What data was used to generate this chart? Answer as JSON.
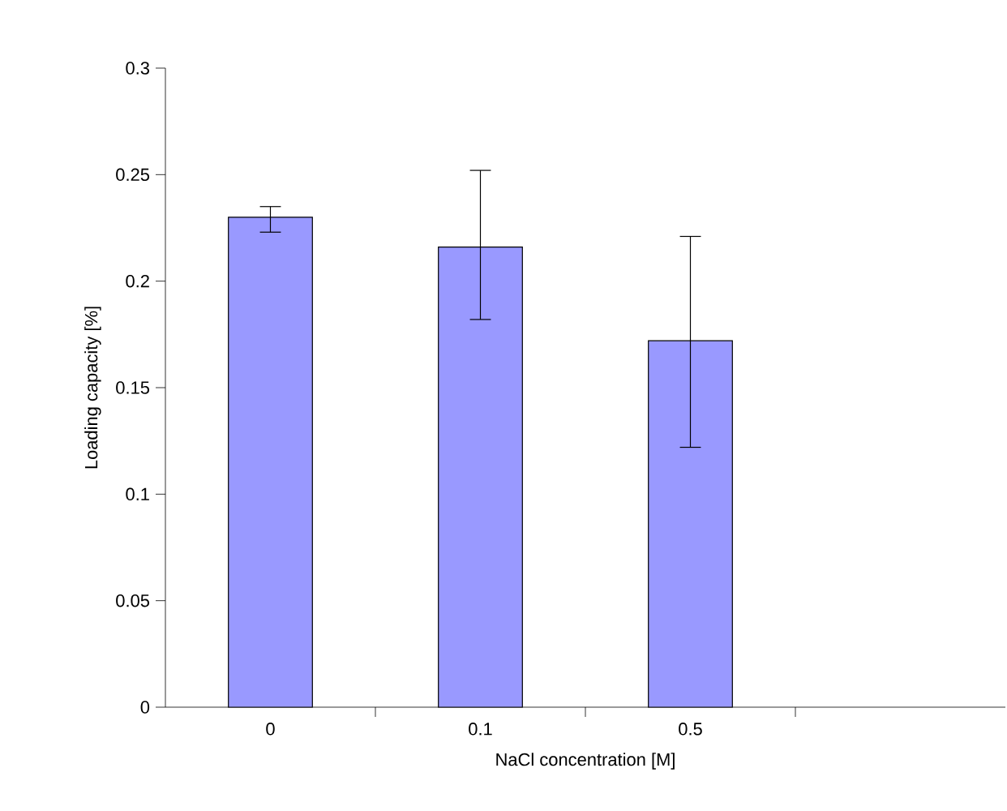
{
  "chart_data": {
    "type": "bar",
    "xlabel": "NaCl concentration [M]",
    "ylabel": "Loading capacity [%]",
    "categories": [
      "0",
      "0.1",
      "0.5",
      null
    ],
    "values": [
      0.23,
      0.216,
      0.172,
      null
    ],
    "errors": [
      [
        0.223,
        0.235
      ],
      [
        0.182,
        0.252
      ],
      [
        0.122,
        0.221
      ],
      null
    ],
    "color": "#9999ff",
    "ylim": [
      0,
      0.3
    ],
    "yticks": [
      0,
      0.05,
      0.1,
      0.15,
      0.2,
      0.25,
      0.3
    ],
    "grid": false
  }
}
